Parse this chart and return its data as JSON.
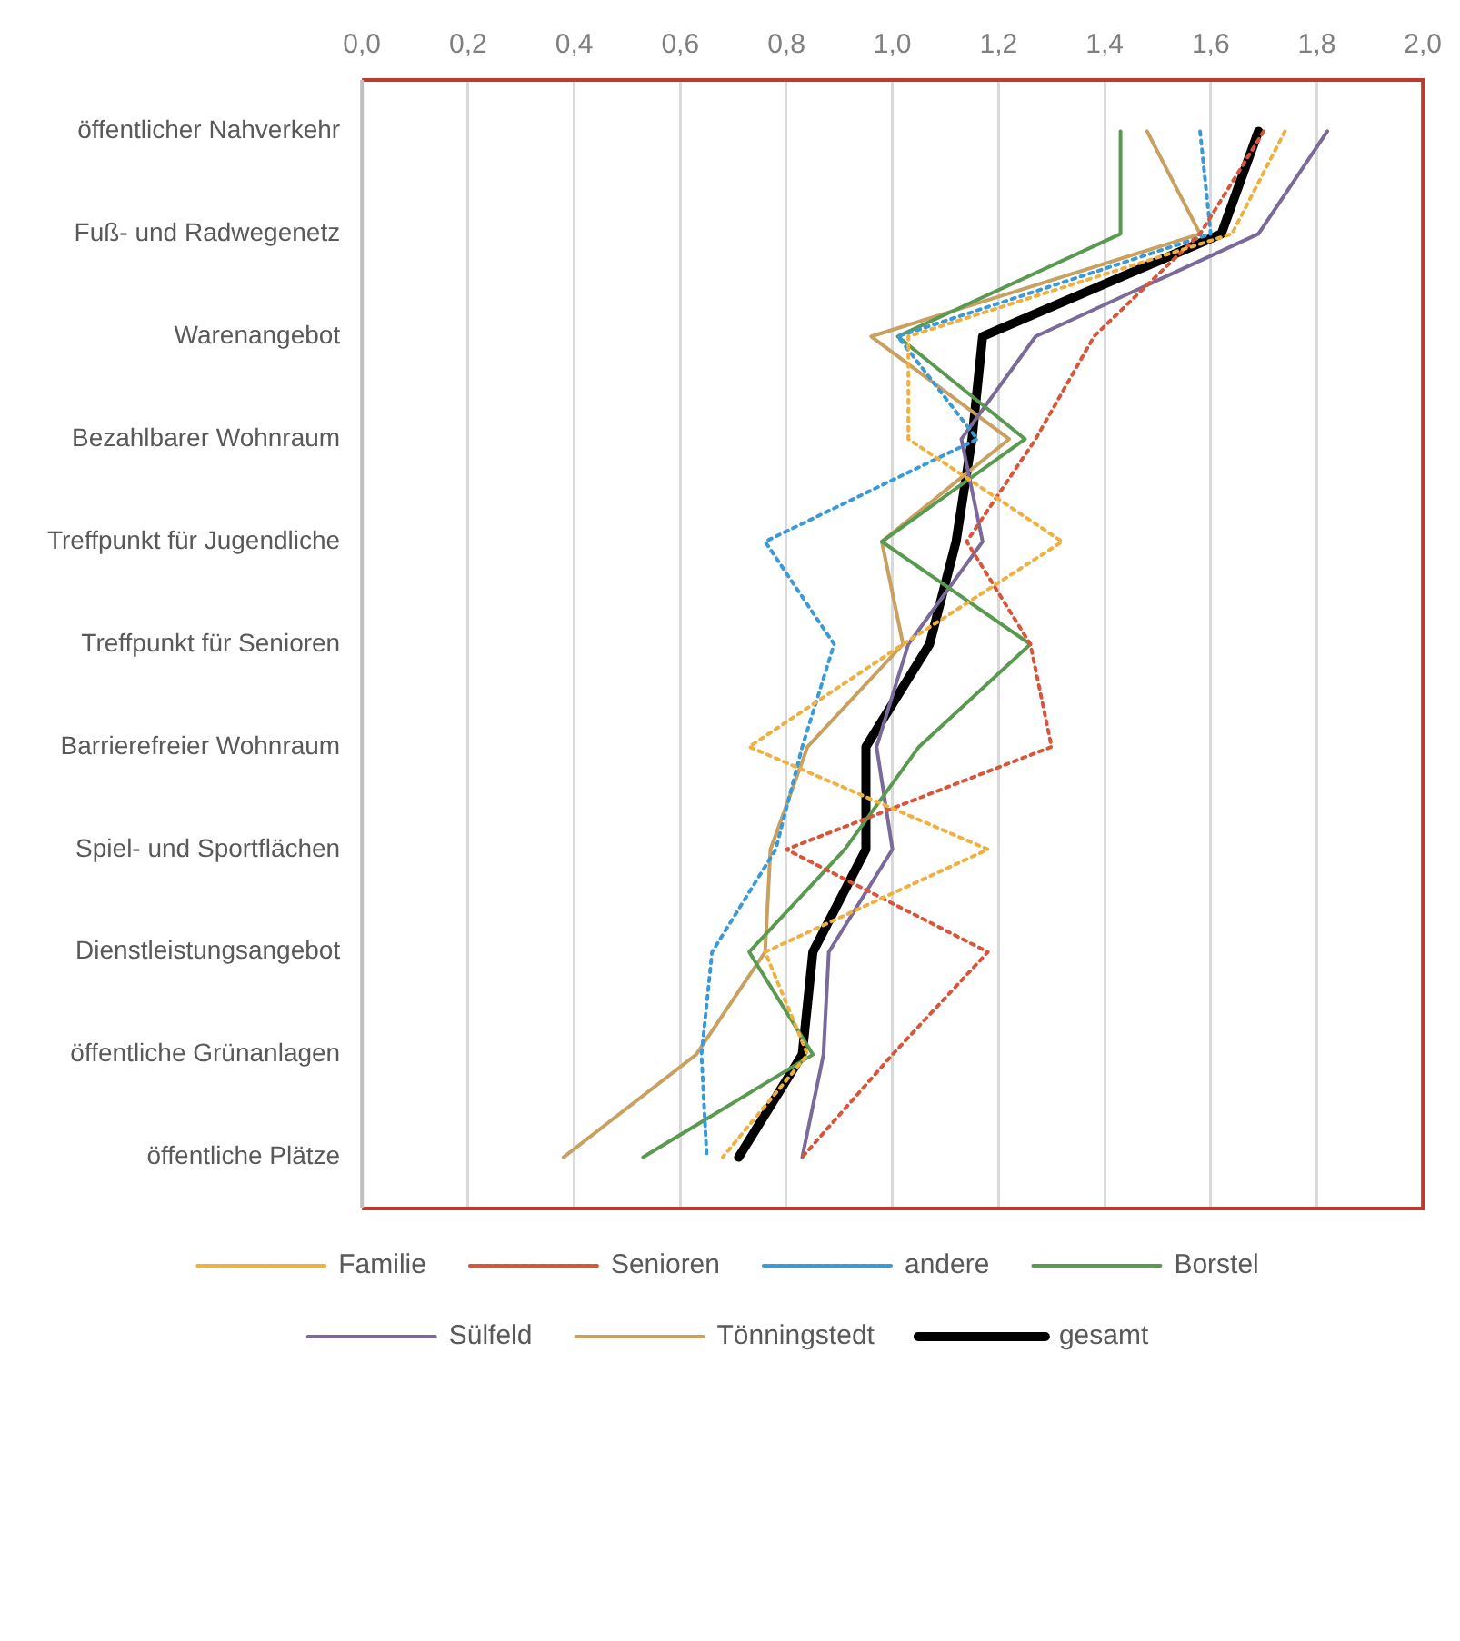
{
  "chart_data": {
    "type": "line",
    "orientation": "horizontal",
    "categories": [
      "öffentlicher Nahverkehr",
      "Fuß- und Radwegenetz",
      "Warenangebot",
      "Bezahlbarer Wohnraum",
      "Treffpunkt für Jugendliche",
      "Treffpunkt für Senioren",
      "Barrierefreier Wohnraum",
      "Spiel- und Sportflächen",
      "Dienstleistungsangebot",
      "öffentliche Grünanlagen",
      "öffentliche Plätze"
    ],
    "series": [
      {
        "name": "Familie",
        "color": "#f0b040",
        "line_style": "dotted",
        "values": [
          1.74,
          1.64,
          1.03,
          1.03,
          1.32,
          1.02,
          0.73,
          1.18,
          0.76,
          0.84,
          0.68
        ]
      },
      {
        "name": "Senioren",
        "color": "#d9553a",
        "line_style": "dotted",
        "values": [
          1.7,
          1.58,
          1.38,
          1.27,
          1.14,
          1.26,
          1.3,
          0.8,
          1.18,
          1.0,
          0.83
        ]
      },
      {
        "name": "andere",
        "color": "#3a9ad9",
        "line_style": "dotted",
        "values": [
          1.58,
          1.6,
          1.01,
          1.16,
          0.76,
          0.89,
          0.83,
          0.78,
          0.66,
          0.64,
          0.65
        ]
      },
      {
        "name": "Borstel",
        "color": "#5a9a50",
        "values": [
          1.43,
          1.43,
          1.01,
          1.25,
          0.98,
          1.26,
          1.05,
          0.91,
          0.73,
          0.85,
          0.53
        ]
      },
      {
        "name": "Sülfeld",
        "color": "#7a6a9a",
        "values": [
          1.82,
          1.69,
          1.27,
          1.13,
          1.17,
          1.03,
          0.97,
          1.0,
          0.88,
          0.87,
          0.83
        ]
      },
      {
        "name": "Tönningstedt",
        "color": "#c8a060",
        "values": [
          1.48,
          1.58,
          0.96,
          1.22,
          0.98,
          1.02,
          0.84,
          0.77,
          0.76,
          0.63,
          0.38
        ]
      },
      {
        "name": "gesamt",
        "color": "#000000",
        "values": [
          1.69,
          1.62,
          1.17,
          1.15,
          1.12,
          1.07,
          0.95,
          0.95,
          0.85,
          0.83,
          0.71
        ]
      }
    ],
    "xlim": [
      0,
      2
    ],
    "xticks": [
      {
        "value": 0,
        "label": "0,0"
      },
      {
        "value": 0.2,
        "label": "0,2"
      },
      {
        "value": 0.4,
        "label": "0,4"
      },
      {
        "value": 0.6,
        "label": "0,6"
      },
      {
        "value": 0.8,
        "label": "0,8"
      },
      {
        "value": 1,
        "label": "1,0"
      },
      {
        "value": 1.2,
        "label": "1,2"
      },
      {
        "value": 1.4,
        "label": "1,4"
      },
      {
        "value": 1.6,
        "label": "1,6"
      },
      {
        "value": 1.8,
        "label": "1,8"
      },
      {
        "value": 2,
        "label": "2,0"
      }
    ],
    "grid": "x",
    "legend": "bottom",
    "marker": "none"
  }
}
